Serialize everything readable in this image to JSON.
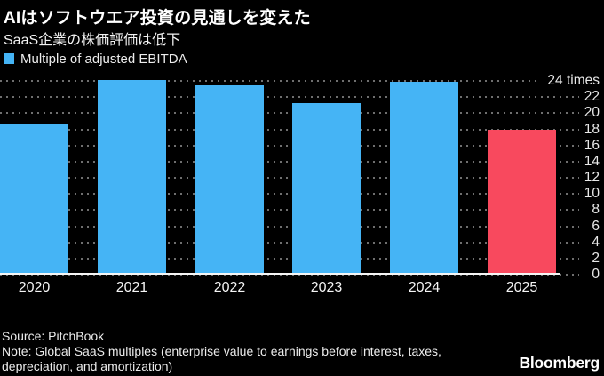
{
  "header": {
    "title": "AIはソフトウエア投資の見通しを変えた",
    "subtitle": "SaaS企業の株価評価は低下"
  },
  "legend": {
    "label": "Multiple of adjusted EBITDA",
    "swatch_color": "#45b4f5"
  },
  "chart_data": {
    "type": "bar",
    "title": "AIはソフトウエア投資の見通しを変えた",
    "subtitle": "SaaS企業の株価評価は低下",
    "categories": [
      "2020",
      "2021",
      "2022",
      "2023",
      "2024",
      "2025"
    ],
    "series": [
      {
        "name": "Multiple of adjusted EBITDA",
        "values": [
          18.6,
          24.1,
          23.5,
          21.2,
          23.9,
          17.9
        ]
      }
    ],
    "unit": "times",
    "ylim": [
      0,
      24
    ],
    "ytick_step": 2,
    "ytick_labels": [
      "0",
      "2",
      "4",
      "6",
      "8",
      "10",
      "12",
      "14",
      "16",
      "18",
      "20",
      "22",
      "24 times"
    ],
    "axis_side": "right",
    "grid": "dotted-horizontal",
    "legend_position": "top-left",
    "bar_colors": [
      "#45b4f5",
      "#45b4f5",
      "#45b4f5",
      "#45b4f5",
      "#45b4f5",
      "#f8495e"
    ],
    "default_bar_color": "#45b4f5",
    "highlight_bar_color": "#f8495e",
    "gridline_color": "#6f6f6f",
    "baseline_color": "#f5f5f5"
  },
  "footer": {
    "source": "Source: PitchBook",
    "note": "Note: Global SaaS multiples (enterprise value to earnings before interest, taxes, depreciation, and amortization)",
    "brand": "Bloomberg"
  }
}
